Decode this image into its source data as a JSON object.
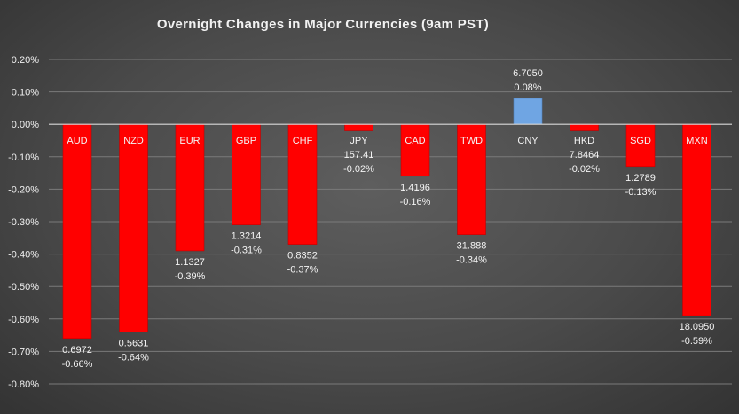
{
  "chart_data": {
    "type": "bar",
    "title": "Overnight Changes in Major Currencies (9am PST)",
    "xlabel": "",
    "ylabel": "",
    "ylim": [
      -0.008,
      0.002
    ],
    "yticks": [
      0.002,
      0.001,
      0.0,
      -0.001,
      -0.002,
      -0.003,
      -0.004,
      -0.005,
      -0.006,
      -0.007,
      -0.008
    ],
    "ytick_labels": [
      "0.20%",
      "0.10%",
      "0.00%",
      "-0.10%",
      "-0.20%",
      "-0.30%",
      "-0.40%",
      "-0.50%",
      "-0.60%",
      "-0.70%",
      "-0.80%"
    ],
    "grid": true,
    "legend": "none",
    "categories": [
      "AUD",
      "NZD",
      "EUR",
      "GBP",
      "CHF",
      "JPY",
      "CAD",
      "TWD",
      "CNY",
      "HKD",
      "SGD",
      "MXN"
    ],
    "values": [
      -0.0066,
      -0.0064,
      -0.0039,
      -0.0031,
      -0.0037,
      -0.0002,
      -0.0016,
      -0.0034,
      0.0008,
      -0.0002,
      -0.0013,
      -0.0059
    ],
    "rates": [
      "0.6972",
      "0.5631",
      "1.1327",
      "1.3214",
      "0.8352",
      "157.41",
      "1.4196",
      "31.888",
      "6.7050",
      "7.8464",
      "1.2789",
      "18.0950"
    ],
    "pct_labels": [
      "-0.66%",
      "-0.64%",
      "-0.39%",
      "-0.31%",
      "-0.37%",
      "-0.02%",
      "-0.16%",
      "-0.34%",
      "0.08%",
      "-0.02%",
      "-0.13%",
      "-0.59%"
    ],
    "colors": {
      "negative": "#ff0000",
      "positive": "#6fa5e3"
    }
  }
}
